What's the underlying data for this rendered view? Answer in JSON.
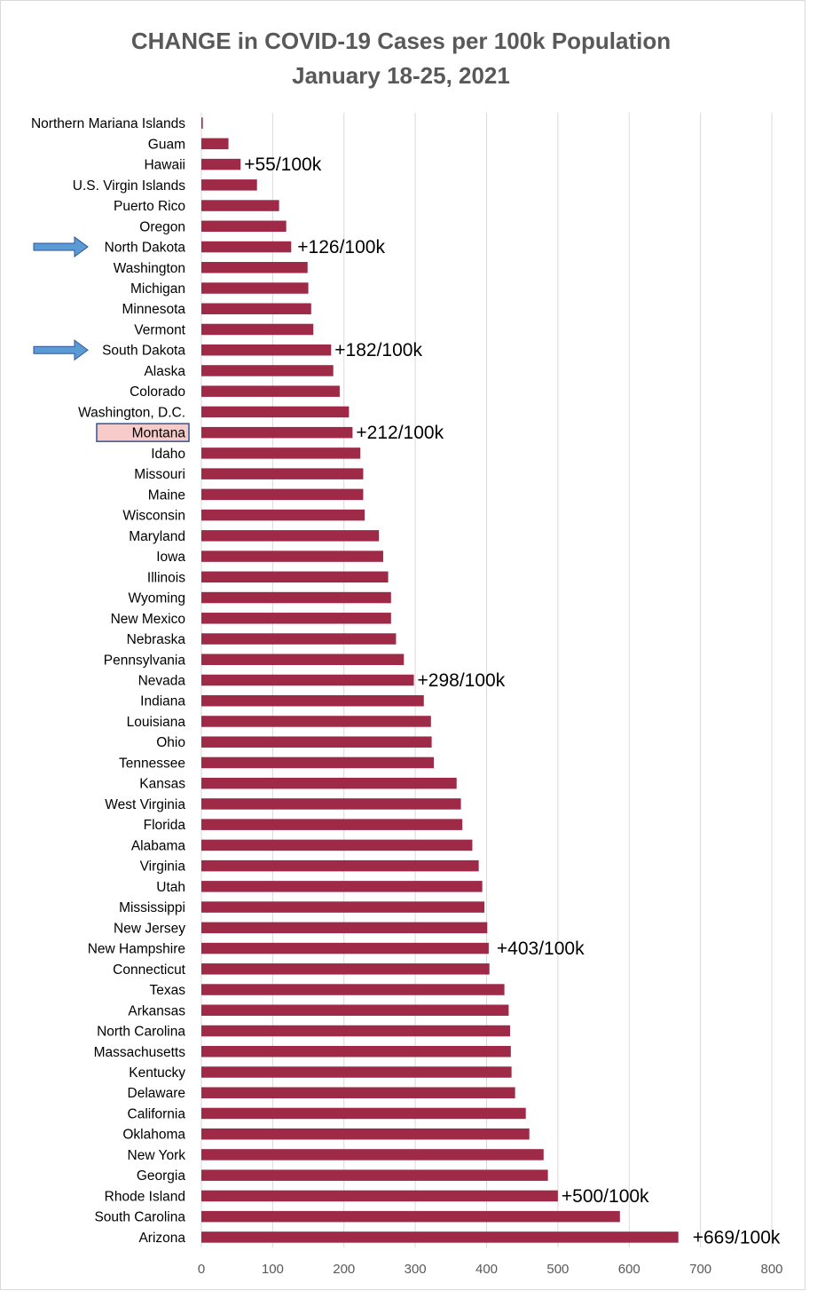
{
  "chart_data": {
    "type": "bar",
    "orientation": "horizontal",
    "title_lines": [
      "CHANGE in COVID-19 Cases per 100k Population",
      "January 18-25, 2021"
    ],
    "xlim": [
      0,
      800
    ],
    "xticks": [
      0,
      100,
      200,
      300,
      400,
      500,
      600,
      700,
      800
    ],
    "grid": true,
    "bar_color": "#9E2A47",
    "categories": [
      "Northern Mariana Islands",
      "Guam",
      "Hawaii",
      "U.S. Virgin Islands",
      "Puerto Rico",
      "Oregon",
      "North Dakota",
      "Washington",
      "Michigan",
      "Minnesota",
      "Vermont",
      "South Dakota",
      "Alaska",
      "Colorado",
      "Washington, D.C.",
      "Montana",
      "Idaho",
      "Missouri",
      "Maine",
      "Wisconsin",
      "Maryland",
      "Iowa",
      "Illinois",
      "Wyoming",
      "New Mexico",
      "Nebraska",
      "Pennsylvania",
      "Nevada",
      "Indiana",
      "Louisiana",
      "Ohio",
      "Tennessee",
      "Kansas",
      "West Virginia",
      "Florida",
      "Alabama",
      "Virginia",
      "Utah",
      "Mississippi",
      "New Jersey",
      "New Hampshire",
      "Connecticut",
      "Texas",
      "Arkansas",
      "North Carolina",
      "Massachusetts",
      "Kentucky",
      "Delaware",
      "California",
      "Oklahoma",
      "New York",
      "Georgia",
      "Rhode Island",
      "South Carolina",
      "Arizona"
    ],
    "values": [
      2,
      38,
      55,
      78,
      109,
      119,
      126,
      149,
      150,
      154,
      157,
      182,
      185,
      194,
      207,
      212,
      223,
      227,
      227,
      229,
      249,
      255,
      262,
      266,
      266,
      273,
      284,
      298,
      312,
      322,
      323,
      326,
      358,
      364,
      366,
      380,
      389,
      394,
      397,
      401,
      403,
      404,
      425,
      431,
      433,
      434,
      435,
      440,
      455,
      460,
      480,
      486,
      500,
      587,
      669
    ],
    "annotations": [
      {
        "category": "Hawaii",
        "text": "+55/100k"
      },
      {
        "category": "North Dakota",
        "text": "+126/100k"
      },
      {
        "category": "South Dakota",
        "text": "+182/100k"
      },
      {
        "category": "Montana",
        "text": "+212/100k"
      },
      {
        "category": "Nevada",
        "text": "+298/100k"
      },
      {
        "category": "New Hampshire",
        "text": "+403/100k"
      },
      {
        "category": "Rhode Island",
        "text": "+500/100k"
      },
      {
        "category": "Arizona",
        "text": "+669/100k"
      }
    ],
    "arrow_markers": [
      "North Dakota",
      "South Dakota"
    ],
    "arrow_color": "#5B9BD5",
    "highlighted_category": "Montana",
    "highlight_fill": "#F8CBCB",
    "highlight_border": "#2F5597"
  }
}
